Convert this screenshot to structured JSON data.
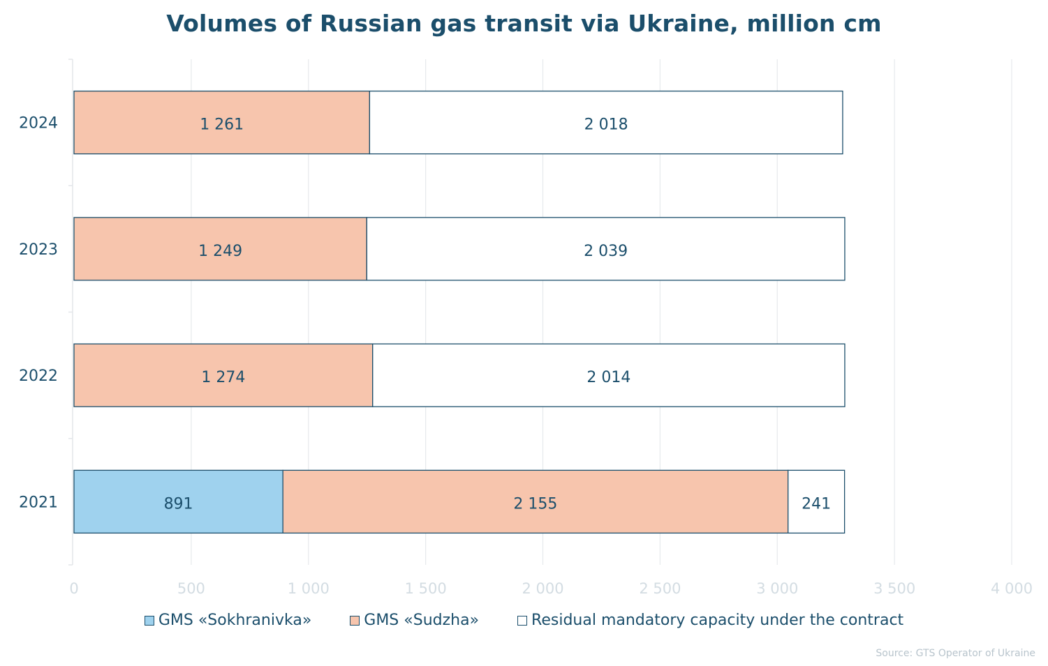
{
  "chart_data": {
    "type": "bar",
    "orientation": "horizontal",
    "stacked": true,
    "title": "Volumes of Russian gas transit via Ukraine, million cm",
    "categories": [
      "2024",
      "2023",
      "2022",
      "2021"
    ],
    "series": [
      {
        "name": "GMS «Sokhranivka»",
        "color": "#9fd2ee",
        "values": [
          0,
          0,
          0,
          891
        ],
        "labels": [
          "",
          "",
          "",
          "891"
        ]
      },
      {
        "name": "GMS «Sudzha»",
        "color": "#f7c5ad",
        "values": [
          1261,
          1249,
          1274,
          2155
        ],
        "labels": [
          "1 261",
          "1 249",
          "1 274",
          "2 155"
        ]
      },
      {
        "name": "Residual mandatory capacity under the contract",
        "color": "#ffffff",
        "values": [
          2018,
          2039,
          2014,
          241
        ],
        "labels": [
          "2 018",
          "2 039",
          "2 014",
          "241"
        ]
      }
    ],
    "xlim": [
      0,
      4000
    ],
    "xticks": [
      0,
      500,
      1000,
      1500,
      2000,
      2500,
      3000,
      3500,
      4000
    ],
    "xtick_labels": [
      "0",
      "500",
      "1 000",
      "1 500",
      "2 000",
      "2 500",
      "3 000",
      "3 500",
      "4 000"
    ],
    "grid": true,
    "legend_position": "bottom",
    "source": "Source: GTS Operator of Ukraine"
  }
}
